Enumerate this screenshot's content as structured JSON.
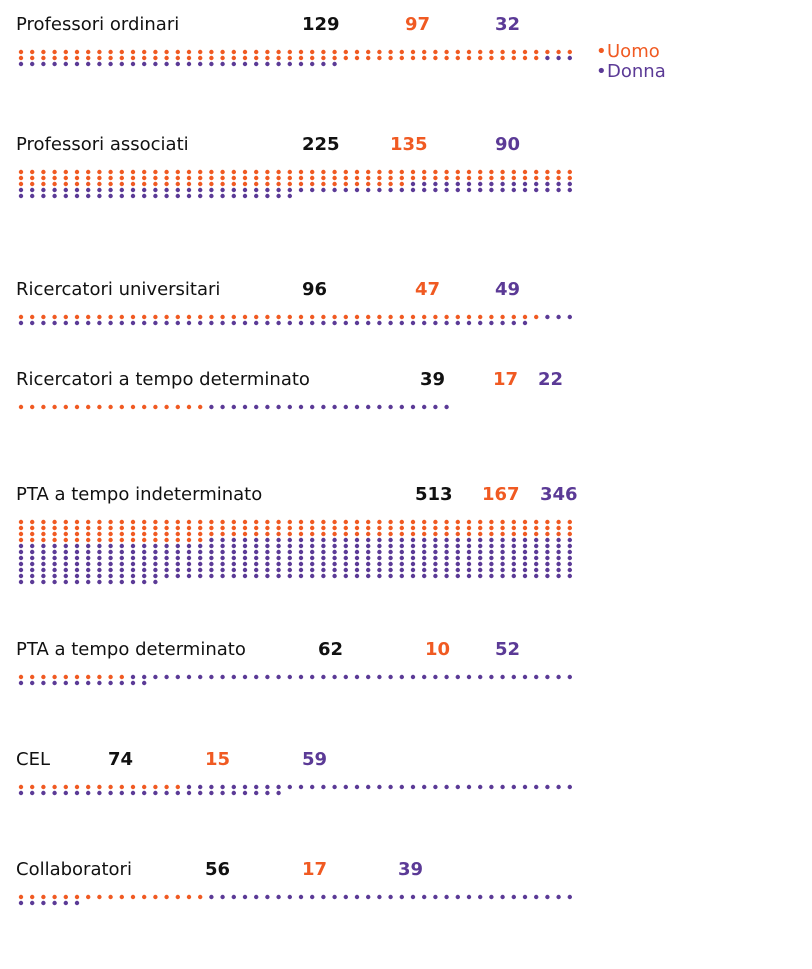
{
  "chart_data": {
    "type": "waffle",
    "categories": [
      "Professori ordinari",
      "Professori associati",
      "Ricercatori universitari",
      "Ricercatori a tempo determinato",
      "PTA a tempo indeterminato",
      "PTA a tempo determinato",
      "CEL",
      "Collaboratori"
    ],
    "totals": [
      129,
      225,
      96,
      39,
      513,
      62,
      74,
      56
    ],
    "series": [
      {
        "name": "Uomo",
        "color": "#f05a22",
        "values": [
          97,
          135,
          47,
          17,
          167,
          10,
          15,
          17
        ]
      },
      {
        "name": "Donna",
        "color": "#5b3a96",
        "values": [
          32,
          90,
          49,
          22,
          346,
          52,
          59,
          39
        ]
      }
    ]
  }
}
